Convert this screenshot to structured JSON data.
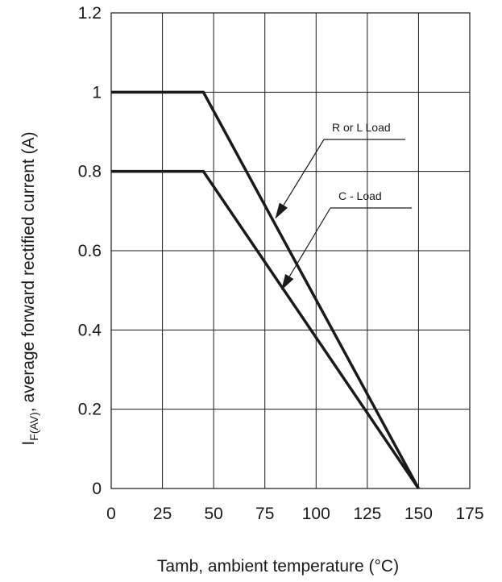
{
  "chart_data": {
    "type": "line",
    "title": "",
    "xlabel": "Tamb, ambient temperature (°C)",
    "ylabel_main": "I",
    "ylabel_sub": "F(AV)",
    "ylabel_rest": ", average forward rectified current (A)",
    "xlim": [
      0,
      175
    ],
    "ylim": [
      0,
      1.2
    ],
    "x_ticks": [
      0,
      25,
      50,
      75,
      100,
      125,
      150,
      175
    ],
    "y_ticks": [
      0,
      0.2,
      0.4,
      0.6,
      0.8,
      1,
      1.2
    ],
    "x_tick_labels": [
      "0",
      "25",
      "50",
      "75",
      "100",
      "125",
      "150",
      "175"
    ],
    "y_tick_labels": [
      "0",
      "0.2",
      "0.4",
      "0.6",
      "0.8",
      "1",
      "1.2"
    ],
    "grid": true,
    "series": [
      {
        "name": "R or L Load",
        "x": [
          0,
          45,
          150
        ],
        "y": [
          1.0,
          1.0,
          0
        ]
      },
      {
        "name": "C - Load",
        "x": [
          0,
          45,
          150
        ],
        "y": [
          0.8,
          0.8,
          0
        ]
      }
    ],
    "annotations": [
      {
        "text": "R or L Load",
        "arrow_to": {
          "x": 80,
          "y": 0.68
        }
      },
      {
        "text": "C - Load",
        "arrow_to": {
          "x": 83,
          "y": 0.5
        }
      }
    ]
  }
}
